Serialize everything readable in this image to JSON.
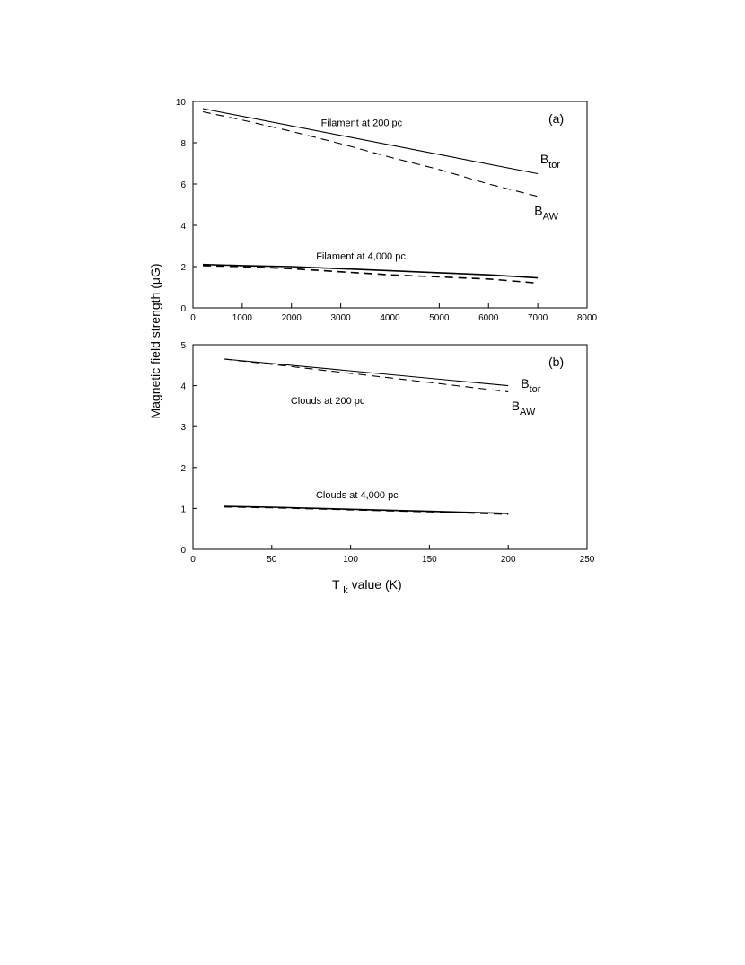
{
  "figure": {
    "ylabel": "Magnetic field strength (μG)",
    "xlabel_main": "T",
    "xlabel_sub": "k",
    "xlabel_rest": " value (K)"
  },
  "chart_data": [
    {
      "type": "line",
      "panel_label": "(a)",
      "xlim": [
        0,
        8000
      ],
      "ylim": [
        0,
        10
      ],
      "xticks": [
        0,
        1000,
        2000,
        3000,
        4000,
        5000,
        6000,
        7000,
        8000
      ],
      "yticks": [
        0,
        2,
        4,
        6,
        8,
        10
      ],
      "grid": false,
      "annotations": [
        {
          "text": "Filament at 200 pc",
          "x": 2600,
          "y": 8.8
        },
        {
          "text": "Filament at 4,000 pc",
          "x": 2500,
          "y": 2.35
        }
      ],
      "series_labels": [
        {
          "main": "B",
          "sub": "tor",
          "x": 7050,
          "y": 7.0
        },
        {
          "main": "B",
          "sub": "AW",
          "x": 6930,
          "y": 4.5
        }
      ],
      "series": [
        {
          "style": "solid",
          "x": [
            200,
            7000
          ],
          "y": [
            9.65,
            6.5
          ]
        },
        {
          "style": "dashed",
          "x": [
            200,
            1000,
            2000,
            3000,
            4000,
            5000,
            6000,
            7000
          ],
          "y": [
            9.5,
            9.1,
            8.55,
            7.95,
            7.3,
            6.7,
            6.0,
            5.4
          ]
        },
        {
          "style": "solid",
          "x": [
            200,
            1000,
            2000,
            3000,
            4000,
            5000,
            6000,
            7000
          ],
          "y": [
            2.1,
            2.05,
            2.0,
            1.9,
            1.8,
            1.7,
            1.6,
            1.45
          ]
        },
        {
          "style": "dashed",
          "x": [
            200,
            1000,
            2000,
            3000,
            4000,
            5000,
            6000,
            7000
          ],
          "y": [
            2.05,
            2.0,
            1.9,
            1.75,
            1.6,
            1.5,
            1.4,
            1.2
          ]
        }
      ]
    },
    {
      "type": "line",
      "panel_label": "(b)",
      "xlim": [
        0,
        250
      ],
      "ylim": [
        0,
        5
      ],
      "xticks": [
        0,
        50,
        100,
        150,
        200,
        250
      ],
      "yticks": [
        0,
        1,
        2,
        3,
        4,
        5
      ],
      "grid": false,
      "annotations": [
        {
          "text": "Clouds at 200 pc",
          "x": 62,
          "y": 3.55
        },
        {
          "text": "Clouds at 4,000 pc",
          "x": 78,
          "y": 1.25
        }
      ],
      "series_labels": [
        {
          "main": "B",
          "sub": "tor",
          "x": 208,
          "y": 3.95
        },
        {
          "main": "B",
          "sub": "AW",
          "x": 202,
          "y": 3.4
        }
      ],
      "series": [
        {
          "style": "solid",
          "x": [
            20,
            200
          ],
          "y": [
            4.65,
            4.0
          ]
        },
        {
          "style": "dashed",
          "x": [
            20,
            50,
            100,
            150,
            200
          ],
          "y": [
            4.65,
            4.52,
            4.3,
            4.08,
            3.85
          ]
        },
        {
          "style": "solid",
          "x": [
            20,
            50,
            100,
            150,
            200
          ],
          "y": [
            1.05,
            1.03,
            0.98,
            0.93,
            0.88
          ]
        },
        {
          "style": "dashed",
          "x": [
            20,
            50,
            100,
            150,
            200
          ],
          "y": [
            1.04,
            1.02,
            0.97,
            0.92,
            0.86
          ]
        }
      ]
    }
  ]
}
